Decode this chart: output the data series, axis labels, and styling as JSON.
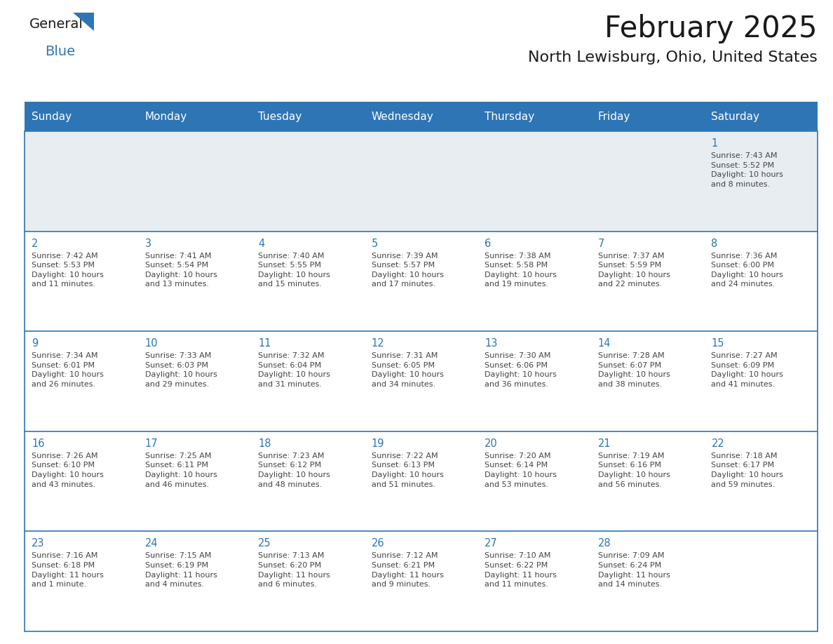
{
  "title": "February 2025",
  "subtitle": "North Lewisburg, Ohio, United States",
  "header_bg": "#2e75b6",
  "header_text_color": "#ffffff",
  "cell_border_color": "#2e75b6",
  "row1_bg": "#e8edf2",
  "day_number_color": "#2e75b6",
  "text_color": "#444444",
  "background_color": "#ffffff",
  "days_of_week": [
    "Sunday",
    "Monday",
    "Tuesday",
    "Wednesday",
    "Thursday",
    "Friday",
    "Saturday"
  ],
  "weeks": [
    [
      {
        "day": "",
        "info": ""
      },
      {
        "day": "",
        "info": ""
      },
      {
        "day": "",
        "info": ""
      },
      {
        "day": "",
        "info": ""
      },
      {
        "day": "",
        "info": ""
      },
      {
        "day": "",
        "info": ""
      },
      {
        "day": "1",
        "info": "Sunrise: 7:43 AM\nSunset: 5:52 PM\nDaylight: 10 hours\nand 8 minutes."
      }
    ],
    [
      {
        "day": "2",
        "info": "Sunrise: 7:42 AM\nSunset: 5:53 PM\nDaylight: 10 hours\nand 11 minutes."
      },
      {
        "day": "3",
        "info": "Sunrise: 7:41 AM\nSunset: 5:54 PM\nDaylight: 10 hours\nand 13 minutes."
      },
      {
        "day": "4",
        "info": "Sunrise: 7:40 AM\nSunset: 5:55 PM\nDaylight: 10 hours\nand 15 minutes."
      },
      {
        "day": "5",
        "info": "Sunrise: 7:39 AM\nSunset: 5:57 PM\nDaylight: 10 hours\nand 17 minutes."
      },
      {
        "day": "6",
        "info": "Sunrise: 7:38 AM\nSunset: 5:58 PM\nDaylight: 10 hours\nand 19 minutes."
      },
      {
        "day": "7",
        "info": "Sunrise: 7:37 AM\nSunset: 5:59 PM\nDaylight: 10 hours\nand 22 minutes."
      },
      {
        "day": "8",
        "info": "Sunrise: 7:36 AM\nSunset: 6:00 PM\nDaylight: 10 hours\nand 24 minutes."
      }
    ],
    [
      {
        "day": "9",
        "info": "Sunrise: 7:34 AM\nSunset: 6:01 PM\nDaylight: 10 hours\nand 26 minutes."
      },
      {
        "day": "10",
        "info": "Sunrise: 7:33 AM\nSunset: 6:03 PM\nDaylight: 10 hours\nand 29 minutes."
      },
      {
        "day": "11",
        "info": "Sunrise: 7:32 AM\nSunset: 6:04 PM\nDaylight: 10 hours\nand 31 minutes."
      },
      {
        "day": "12",
        "info": "Sunrise: 7:31 AM\nSunset: 6:05 PM\nDaylight: 10 hours\nand 34 minutes."
      },
      {
        "day": "13",
        "info": "Sunrise: 7:30 AM\nSunset: 6:06 PM\nDaylight: 10 hours\nand 36 minutes."
      },
      {
        "day": "14",
        "info": "Sunrise: 7:28 AM\nSunset: 6:07 PM\nDaylight: 10 hours\nand 38 minutes."
      },
      {
        "day": "15",
        "info": "Sunrise: 7:27 AM\nSunset: 6:09 PM\nDaylight: 10 hours\nand 41 minutes."
      }
    ],
    [
      {
        "day": "16",
        "info": "Sunrise: 7:26 AM\nSunset: 6:10 PM\nDaylight: 10 hours\nand 43 minutes."
      },
      {
        "day": "17",
        "info": "Sunrise: 7:25 AM\nSunset: 6:11 PM\nDaylight: 10 hours\nand 46 minutes."
      },
      {
        "day": "18",
        "info": "Sunrise: 7:23 AM\nSunset: 6:12 PM\nDaylight: 10 hours\nand 48 minutes."
      },
      {
        "day": "19",
        "info": "Sunrise: 7:22 AM\nSunset: 6:13 PM\nDaylight: 10 hours\nand 51 minutes."
      },
      {
        "day": "20",
        "info": "Sunrise: 7:20 AM\nSunset: 6:14 PM\nDaylight: 10 hours\nand 53 minutes."
      },
      {
        "day": "21",
        "info": "Sunrise: 7:19 AM\nSunset: 6:16 PM\nDaylight: 10 hours\nand 56 minutes."
      },
      {
        "day": "22",
        "info": "Sunrise: 7:18 AM\nSunset: 6:17 PM\nDaylight: 10 hours\nand 59 minutes."
      }
    ],
    [
      {
        "day": "23",
        "info": "Sunrise: 7:16 AM\nSunset: 6:18 PM\nDaylight: 11 hours\nand 1 minute."
      },
      {
        "day": "24",
        "info": "Sunrise: 7:15 AM\nSunset: 6:19 PM\nDaylight: 11 hours\nand 4 minutes."
      },
      {
        "day": "25",
        "info": "Sunrise: 7:13 AM\nSunset: 6:20 PM\nDaylight: 11 hours\nand 6 minutes."
      },
      {
        "day": "26",
        "info": "Sunrise: 7:12 AM\nSunset: 6:21 PM\nDaylight: 11 hours\nand 9 minutes."
      },
      {
        "day": "27",
        "info": "Sunrise: 7:10 AM\nSunset: 6:22 PM\nDaylight: 11 hours\nand 11 minutes."
      },
      {
        "day": "28",
        "info": "Sunrise: 7:09 AM\nSunset: 6:24 PM\nDaylight: 11 hours\nand 14 minutes."
      },
      {
        "day": "",
        "info": ""
      }
    ]
  ],
  "logo_text_general": "General",
  "logo_text_blue": "Blue",
  "logo_triangle_color": "#2e75b6",
  "fig_width": 11.88,
  "fig_height": 9.18,
  "dpi": 100
}
